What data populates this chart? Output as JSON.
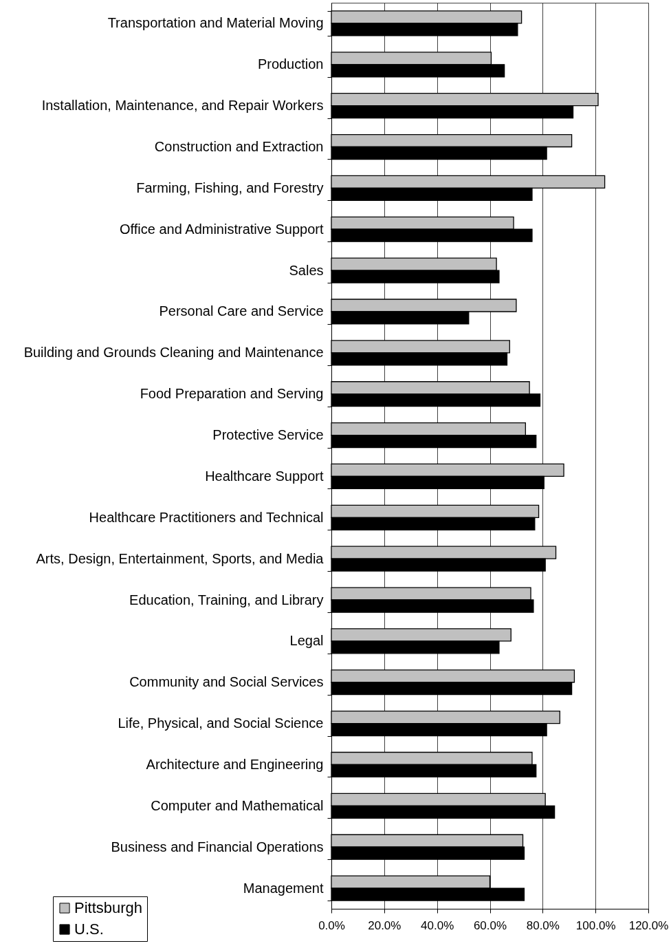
{
  "chart_data": {
    "type": "bar",
    "orientation": "horizontal",
    "categories": [
      "Transportation and Material Moving",
      "Production",
      "Installation, Maintenance, and Repair Workers",
      "Construction and Extraction",
      "Farming, Fishing, and Forestry",
      "Office and Administrative Support",
      "Sales",
      "Personal Care and Service",
      "Building and Grounds Cleaning and Maintenance",
      "Food Preparation and Serving",
      "Protective Service",
      "Healthcare Support",
      "Healthcare Practitioners and Technical",
      "Arts, Design, Entertainment, Sports, and Media",
      "Education, Training, and Library",
      "Legal",
      "Community and Social Services",
      "Life, Physical, and Social Science",
      "Architecture and Engineering",
      "Computer and Mathematical",
      "Business and Financial Operations",
      "Management"
    ],
    "series": [
      {
        "name": "Pittsburgh",
        "color": "#c0c0c0",
        "values": [
          72,
          60.5,
          101,
          91,
          103.5,
          69,
          62.5,
          70,
          67.5,
          75,
          73.5,
          88,
          78.5,
          85,
          75.5,
          68,
          92,
          86.5,
          76,
          81,
          72.5,
          60
        ]
      },
      {
        "name": "U.S.",
        "color": "#000000",
        "values": [
          70.5,
          65.5,
          91.5,
          81.5,
          76,
          76,
          63.5,
          52,
          66.5,
          79,
          77.5,
          80.5,
          77,
          81,
          76.5,
          63.5,
          91,
          81.5,
          77.5,
          84.5,
          73,
          73
        ]
      }
    ],
    "xlim": [
      0,
      120
    ],
    "xticks": [
      {
        "value": 0,
        "label": "0.0%"
      },
      {
        "value": 20,
        "label": "20.0%"
      },
      {
        "value": 40,
        "label": "40.0%"
      },
      {
        "value": 60,
        "label": "60.0%"
      },
      {
        "value": 80,
        "label": "80.0%"
      },
      {
        "value": 100,
        "label": "100.0%"
      },
      {
        "value": 120,
        "label": "120.0%"
      }
    ],
    "grid": "x",
    "legend": "bottom left"
  }
}
